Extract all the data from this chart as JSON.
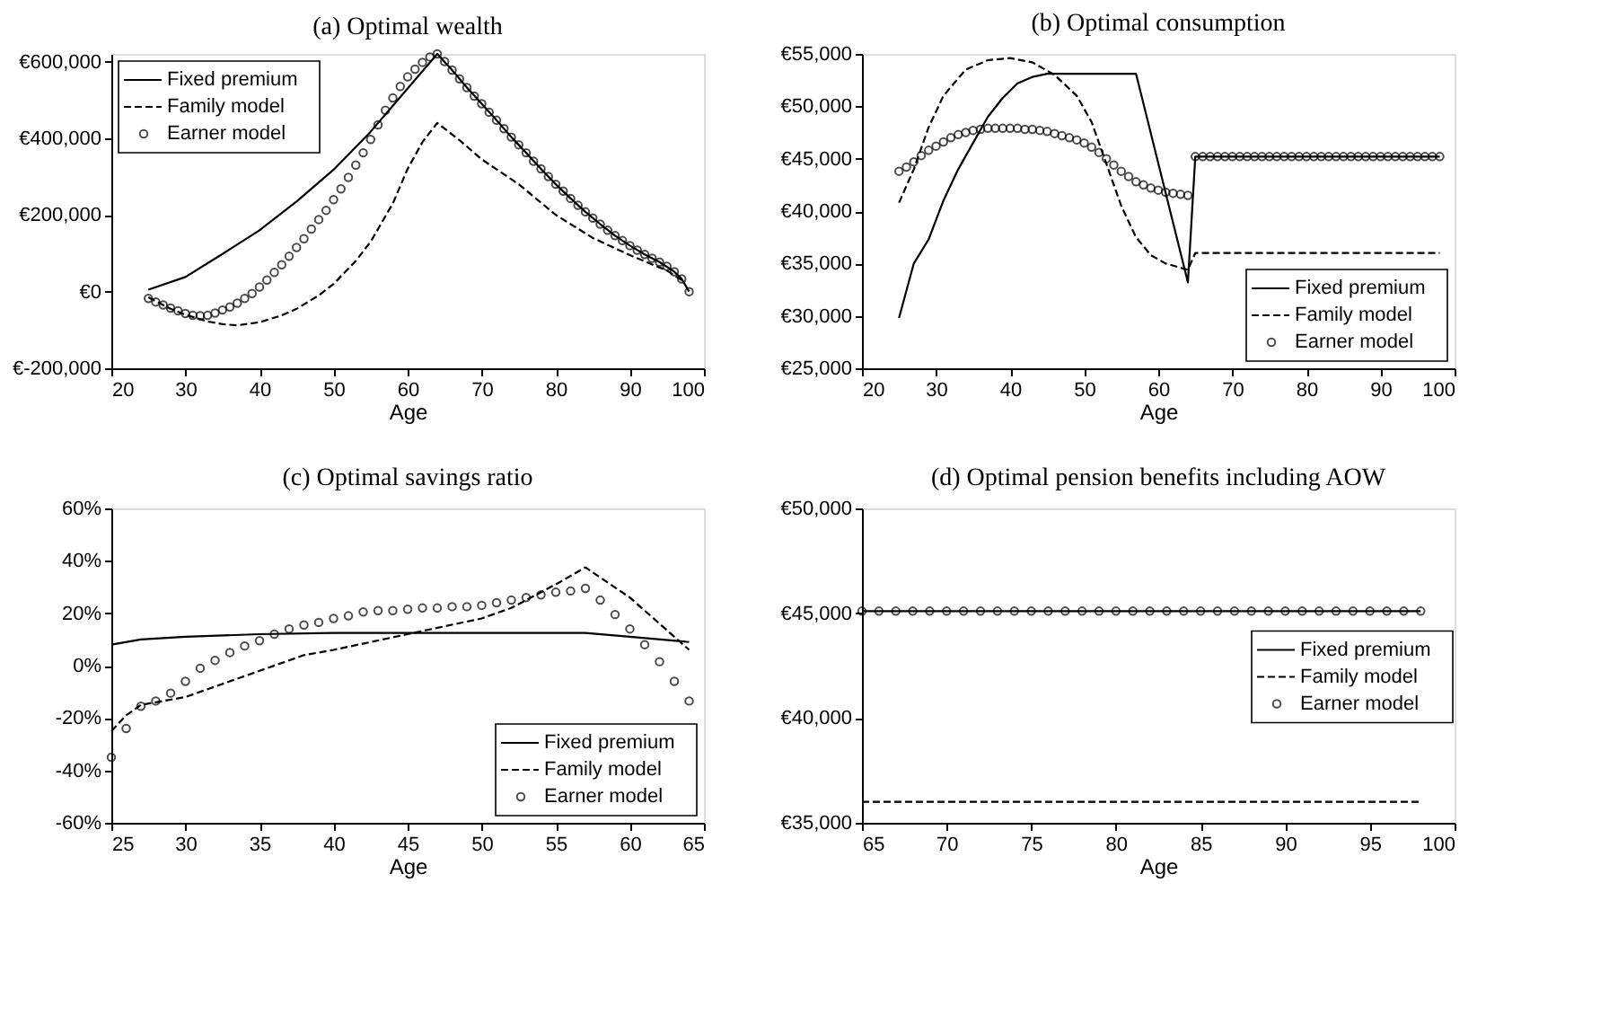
{
  "chart_data": [
    {
      "type": "line",
      "title": "(a) Optimal wealth",
      "xlabel": "Age",
      "legend": "top left",
      "grid": false,
      "xlim": [
        20,
        100
      ],
      "xticks": [
        20,
        30,
        40,
        50,
        60,
        70,
        80,
        90,
        100
      ],
      "ylim": [
        -200000,
        620000
      ],
      "yticks": [
        {
          "value": -200000,
          "label": "€-200,000"
        },
        {
          "value": 0,
          "label": "€0"
        },
        {
          "value": 200000,
          "label": "€200,000"
        },
        {
          "value": 400000,
          "label": "€400,000"
        },
        {
          "value": 600000,
          "label": "€600,000"
        }
      ],
      "series": [
        {
          "name": "Fixed premium",
          "type": "line",
          "line_style": "solid",
          "marker": "none",
          "color": "#000000",
          "x": [
            25,
            30,
            35,
            40,
            45,
            50,
            55,
            60,
            62,
            64,
            66,
            68,
            70,
            72,
            74,
            76,
            78,
            80,
            82,
            84,
            86,
            88,
            90,
            92,
            94,
            96,
            97,
            98
          ],
          "values": [
            5000,
            38000,
            98000,
            160000,
            235000,
            318000,
            417000,
            530000,
            575000,
            620000,
            578000,
            532000,
            490000,
            447000,
            403000,
            362000,
            320000,
            280000,
            243000,
            208000,
            176000,
            146000,
            120000,
            97000,
            77000,
            52000,
            33000,
            0
          ]
        },
        {
          "name": "Family model",
          "type": "line",
          "line_style": "dashed",
          "marker": "none",
          "color": "#000000",
          "x": [
            25,
            28,
            30,
            33,
            35,
            37,
            40,
            43,
            45,
            48,
            50,
            53,
            55,
            58,
            60,
            62,
            64,
            67,
            70,
            75,
            80,
            85,
            90,
            95,
            97
          ],
          "values": [
            -15000,
            -45000,
            -60000,
            -78000,
            -85000,
            -88000,
            -80000,
            -62000,
            -45000,
            -10000,
            20000,
            80000,
            130000,
            230000,
            320000,
            390000,
            440000,
            395000,
            345000,
            280000,
            200000,
            140000,
            95000,
            55000,
            30000
          ]
        },
        {
          "name": "Earner model",
          "type": "scatter",
          "marker": "circle",
          "color": "#000000",
          "x": [
            25,
            26,
            27,
            28,
            29,
            30,
            31,
            32,
            33,
            34,
            35,
            36,
            37,
            38,
            39,
            40,
            41,
            42,
            43,
            44,
            45,
            46,
            47,
            48,
            49,
            50,
            51,
            52,
            53,
            54,
            55,
            56,
            57,
            58,
            59,
            60,
            61,
            62,
            63,
            64,
            65,
            66,
            67,
            68,
            69,
            70,
            71,
            72,
            73,
            74,
            75,
            76,
            77,
            78,
            79,
            80,
            81,
            82,
            83,
            84,
            85,
            86,
            87,
            88,
            89,
            90,
            91,
            92,
            93,
            94,
            95,
            96,
            97,
            98
          ],
          "values": [
            -18000,
            -27000,
            -35000,
            -43000,
            -50000,
            -57000,
            -62000,
            -63000,
            -62000,
            -56000,
            -48000,
            -40000,
            -30000,
            -18000,
            -5000,
            12000,
            30000,
            50000,
            70000,
            92000,
            115000,
            138000,
            163000,
            188000,
            212000,
            240000,
            268000,
            298000,
            330000,
            362000,
            397000,
            435000,
            473000,
            505000,
            535000,
            560000,
            580000,
            598000,
            612000,
            620000,
            600000,
            578000,
            555000,
            532000,
            510000,
            490000,
            468000,
            447000,
            425000,
            403000,
            383000,
            362000,
            340000,
            320000,
            300000,
            280000,
            262000,
            243000,
            225000,
            208000,
            192000,
            176000,
            160000,
            146000,
            133000,
            120000,
            108000,
            97000,
            87000,
            77000,
            66000,
            52000,
            33000,
            0
          ]
        }
      ]
    },
    {
      "type": "line",
      "title": "(b) Optimal consumption",
      "xlabel": "Age",
      "legend": "bottom right",
      "grid": false,
      "xlim": [
        20,
        100
      ],
      "xticks": [
        20,
        30,
        40,
        50,
        60,
        70,
        80,
        90,
        100
      ],
      "ylim": [
        25000,
        55000
      ],
      "yticks": [
        {
          "value": 25000,
          "label": "€25,000"
        },
        {
          "value": 30000,
          "label": "€30,000"
        },
        {
          "value": 35000,
          "label": "€35,000"
        },
        {
          "value": 40000,
          "label": "€40,000"
        },
        {
          "value": 45000,
          "label": "€45,000"
        },
        {
          "value": 50000,
          "label": "€50,000"
        },
        {
          "value": 55000,
          "label": "€55,000"
        }
      ],
      "series": [
        {
          "name": "Fixed premium",
          "type": "line",
          "line_style": "solid",
          "marker": "none",
          "color": "#000000",
          "x": [
            25,
            27,
            29,
            31,
            33,
            35,
            37,
            39,
            41,
            43,
            45,
            57,
            64,
            65,
            98
          ],
          "values": [
            29800,
            35000,
            37300,
            41000,
            44000,
            46500,
            49000,
            50800,
            52200,
            52800,
            53100,
            53100,
            33200,
            45200,
            45200
          ]
        },
        {
          "name": "Family model",
          "type": "line",
          "line_style": "dashed",
          "marker": "none",
          "color": "#000000",
          "x": [
            25,
            27,
            29,
            31,
            34,
            37,
            40,
            43,
            46,
            49,
            51,
            53,
            55,
            57,
            59,
            61,
            64,
            65,
            98
          ],
          "values": [
            40800,
            44000,
            48000,
            51000,
            53500,
            54400,
            54600,
            54200,
            53000,
            51000,
            48500,
            44500,
            40500,
            37500,
            35800,
            35000,
            34400,
            36000,
            36000
          ]
        },
        {
          "name": "Earner model",
          "type": "scatter",
          "marker": "circle",
          "color": "#000000",
          "x": [
            25,
            26,
            27,
            28,
            29,
            30,
            31,
            32,
            33,
            34,
            35,
            36,
            37,
            38,
            39,
            40,
            41,
            42,
            43,
            44,
            45,
            46,
            47,
            48,
            49,
            50,
            51,
            52,
            53,
            54,
            55,
            56,
            57,
            58,
            59,
            60,
            61,
            62,
            63,
            64,
            65,
            66,
            67,
            68,
            69,
            70,
            71,
            72,
            73,
            74,
            75,
            76,
            77,
            78,
            79,
            80,
            81,
            82,
            83,
            84,
            85,
            86,
            87,
            88,
            89,
            90,
            91,
            92,
            93,
            94,
            95,
            96,
            97,
            98
          ],
          "values": [
            43800,
            44200,
            44700,
            45300,
            45800,
            46200,
            46600,
            47000,
            47300,
            47500,
            47700,
            47800,
            47900,
            47900,
            47900,
            47900,
            47900,
            47800,
            47800,
            47700,
            47600,
            47400,
            47200,
            47000,
            46800,
            46500,
            46100,
            45600,
            45000,
            44400,
            43800,
            43300,
            42800,
            42500,
            42200,
            42000,
            41800,
            41700,
            41600,
            41500,
            45200,
            45200,
            45200,
            45200,
            45200,
            45200,
            45200,
            45200,
            45200,
            45200,
            45200,
            45200,
            45200,
            45200,
            45200,
            45200,
            45200,
            45200,
            45200,
            45200,
            45200,
            45200,
            45200,
            45200,
            45200,
            45200,
            45200,
            45200,
            45200,
            45200,
            45200,
            45200,
            45200,
            45200
          ]
        }
      ]
    },
    {
      "type": "line",
      "title": "(c) Optimal savings ratio",
      "xlabel": "Age",
      "legend": "bottom right",
      "grid": false,
      "xlim": [
        25,
        65
      ],
      "xticks": [
        25,
        30,
        35,
        40,
        45,
        50,
        55,
        60,
        65
      ],
      "ylim": [
        -60,
        60
      ],
      "yticks": [
        {
          "value": -60,
          "label": "-60%"
        },
        {
          "value": -40,
          "label": "-40%"
        },
        {
          "value": -20,
          "label": "-20%"
        },
        {
          "value": 0,
          "label": "0%"
        },
        {
          "value": 20,
          "label": "20%"
        },
        {
          "value": 40,
          "label": "40%"
        },
        {
          "value": 60,
          "label": "60%"
        }
      ],
      "series": [
        {
          "name": "Fixed premium",
          "type": "line",
          "line_style": "solid",
          "marker": "none",
          "color": "#000000",
          "x": [
            25,
            27,
            30,
            35,
            40,
            57,
            60,
            64
          ],
          "values": [
            8,
            10,
            11,
            12,
            12.5,
            12.5,
            11,
            9
          ]
        },
        {
          "name": "Family model",
          "type": "line",
          "line_style": "dashed",
          "marker": "none",
          "color": "#000000",
          "x": [
            25,
            26,
            27,
            28,
            30,
            32,
            35,
            38,
            40,
            45,
            50,
            52,
            55,
            57,
            60,
            64
          ],
          "values": [
            -25,
            -19,
            -15,
            -14,
            -12,
            -8,
            -2,
            4,
            6,
            12,
            18,
            22,
            31,
            37.5,
            26,
            6
          ]
        },
        {
          "name": "Earner model",
          "type": "scatter",
          "marker": "circle",
          "color": "#000000",
          "x": [
            25,
            26,
            27,
            28,
            29,
            30,
            31,
            32,
            33,
            34,
            35,
            36,
            37,
            38,
            39,
            40,
            41,
            42,
            43,
            44,
            45,
            46,
            47,
            48,
            49,
            50,
            51,
            52,
            53,
            54,
            55,
            56,
            57,
            58,
            59,
            60,
            61,
            62,
            63,
            64
          ],
          "values": [
            -35,
            -24,
            -15.5,
            -13.5,
            -10.5,
            -6,
            -1,
            2,
            5,
            7.5,
            9.5,
            12,
            14,
            15.5,
            16.5,
            18,
            19,
            20.5,
            21,
            21,
            21.5,
            22,
            22,
            22.5,
            22.5,
            23,
            24,
            25,
            26,
            27,
            28,
            28.5,
            29.5,
            25,
            19.5,
            14,
            8,
            1.5,
            -6,
            -13.5
          ]
        }
      ]
    },
    {
      "type": "line",
      "title": "(d) Optimal pension benefits including AOW",
      "xlabel": "Age",
      "legend": "right",
      "grid": false,
      "xlim": [
        65,
        100
      ],
      "xticks": [
        65,
        70,
        75,
        80,
        85,
        90,
        95,
        100
      ],
      "ylim": [
        35000,
        50000
      ],
      "yticks": [
        {
          "value": 35000,
          "label": "€35,000"
        },
        {
          "value": 40000,
          "label": "€40,000"
        },
        {
          "value": 45000,
          "label": "€45,000"
        },
        {
          "value": 50000,
          "label": "€50,000"
        }
      ],
      "series": [
        {
          "name": "Fixed premium",
          "type": "line",
          "line_style": "solid",
          "marker": "none",
          "color": "#000000",
          "x": [
            65,
            98
          ],
          "values": [
            45100,
            45100
          ]
        },
        {
          "name": "Family model",
          "type": "line",
          "line_style": "dashed",
          "marker": "none",
          "color": "#000000",
          "x": [
            65,
            98
          ],
          "values": [
            36000,
            36000
          ]
        },
        {
          "name": "Earner model",
          "type": "scatter",
          "marker": "circle",
          "color": "#000000",
          "x": [
            65,
            66,
            67,
            68,
            69,
            70,
            71,
            72,
            73,
            74,
            75,
            76,
            77,
            78,
            79,
            80,
            81,
            82,
            83,
            84,
            85,
            86,
            87,
            88,
            89,
            90,
            91,
            92,
            93,
            94,
            95,
            96,
            97,
            98
          ],
          "values": [
            45100,
            45100,
            45100,
            45100,
            45100,
            45100,
            45100,
            45100,
            45100,
            45100,
            45100,
            45100,
            45100,
            45100,
            45100,
            45100,
            45100,
            45100,
            45100,
            45100,
            45100,
            45100,
            45100,
            45100,
            45100,
            45100,
            45100,
            45100,
            45100,
            45100,
            45100,
            45100,
            45100,
            45100
          ]
        }
      ]
    }
  ]
}
